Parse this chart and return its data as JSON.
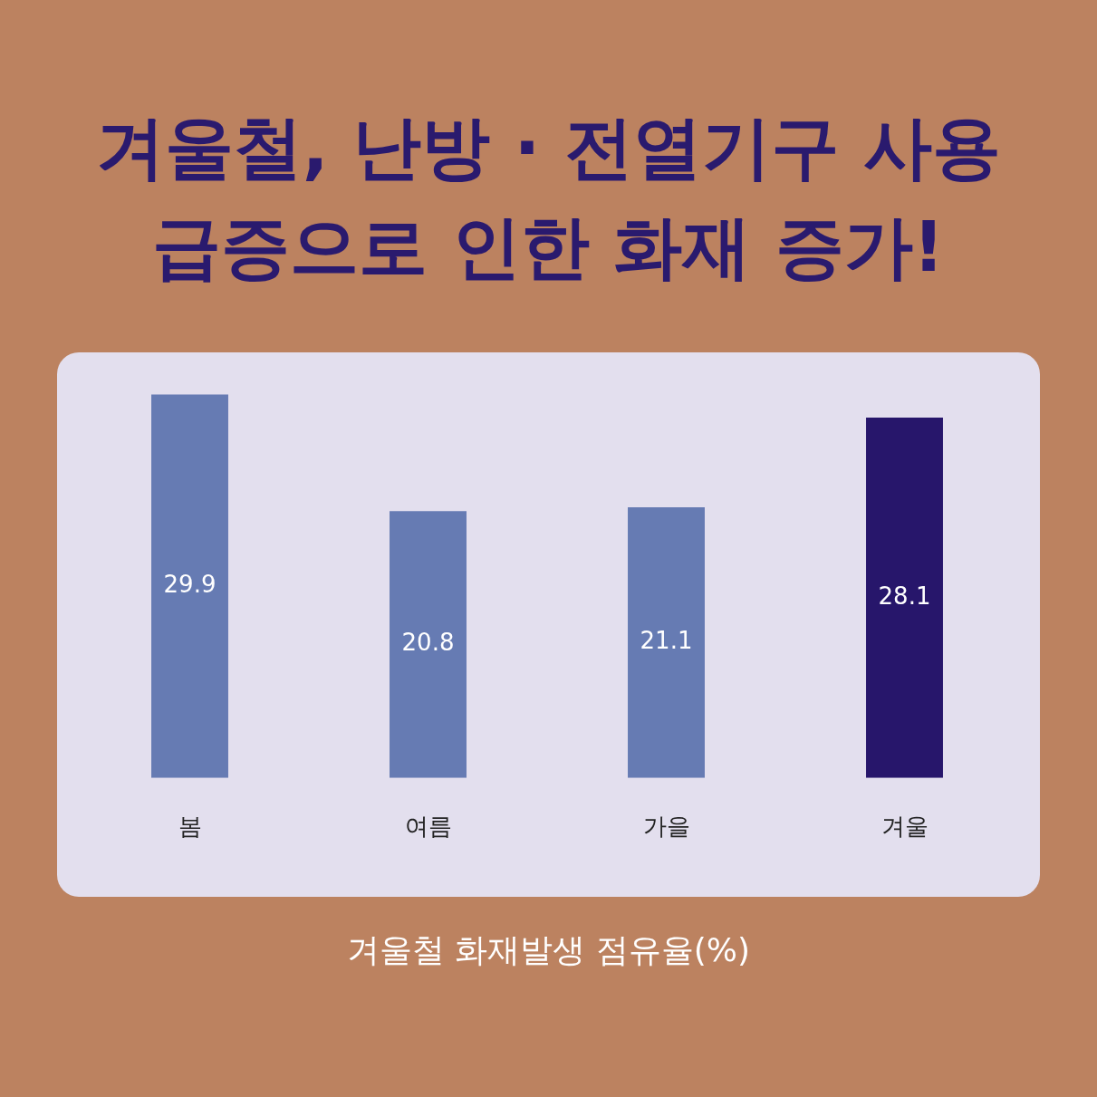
{
  "chart_data": {
    "type": "bar",
    "title": "겨울철, 난방 · 전열기구 사용\n급증으로 인한 화재 증가!",
    "categories": [
      "봄",
      "여름",
      "가을",
      "겨울"
    ],
    "values": [
      29.9,
      20.8,
      21.1,
      28.1
    ],
    "colors": [
      "#667bb3",
      "#667bb3",
      "#667bb3",
      "#27166b"
    ],
    "data_labels": true,
    "grid": false,
    "legend": false,
    "annotations": [
      "겨울철 화재발생 점유율(%)"
    ]
  }
}
